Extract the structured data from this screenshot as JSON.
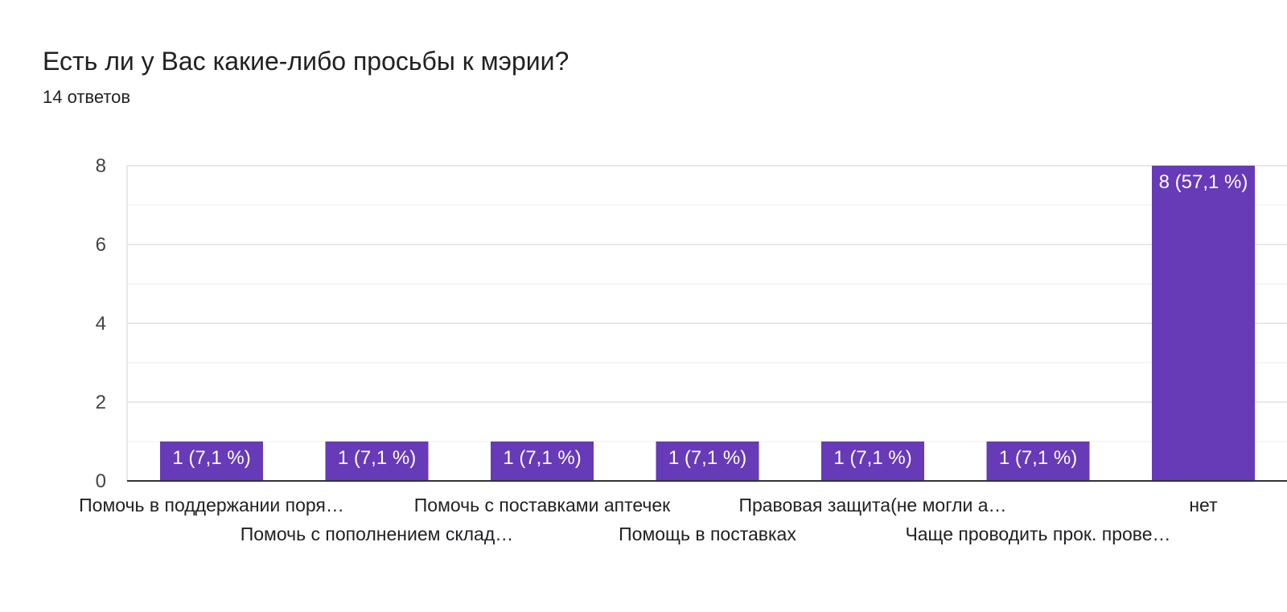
{
  "question": {
    "title": "Есть ли у Вас какие-либо просьбы к мэрии?",
    "responses": "14 ответов"
  },
  "colors": {
    "bar": "#673ab7",
    "bar_label": "#ffffff",
    "grid_major": "#e8e8e8",
    "grid_minor": "#f3f3f3",
    "axis": "#333333",
    "text": "#202124",
    "tick_text": "#444444"
  },
  "chart_data": {
    "type": "bar",
    "categories": [
      "Помочь в поддержании поря…",
      "Помочь с пополнением склад…",
      "Помочь с поставками аптечек",
      "Помощь в поставках",
      "Правовая защита(не могли а…",
      "Чаще проводить прок. прове…",
      "нет"
    ],
    "values": [
      1,
      1,
      1,
      1,
      1,
      1,
      8
    ],
    "data_labels": [
      "1 (7,1 %)",
      "1 (7,1 %)",
      "1 (7,1 %)",
      "1 (7,1 %)",
      "1 (7,1 %)",
      "1 (7,1 %)",
      "8 (57,1 %)"
    ],
    "ylim": [
      0,
      8
    ],
    "yticks": [
      0,
      2,
      4,
      6,
      8
    ],
    "grid": true,
    "legend": "none"
  }
}
